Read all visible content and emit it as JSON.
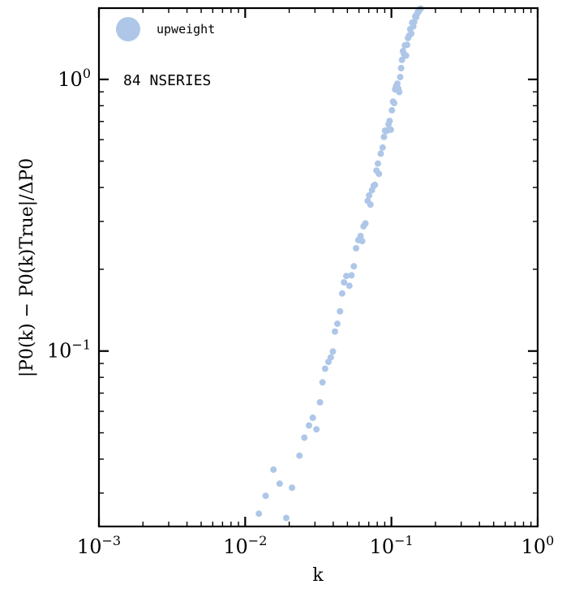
{
  "chart_data": {
    "type": "scatter",
    "xscale": "log",
    "yscale": "log",
    "xlim": [
      0.001,
      1
    ],
    "ylim": [
      0.0226,
      1.83
    ],
    "xlabel": "k",
    "ylabel": "|P0(k) − P0(k)True|/ΔP0",
    "grid": false,
    "legend_position": "top-left",
    "xticks": [
      {
        "value": 0.001,
        "base": "10",
        "exp": "−3"
      },
      {
        "value": 0.01,
        "base": "10",
        "exp": "−2"
      },
      {
        "value": 0.1,
        "base": "10",
        "exp": "−1"
      },
      {
        "value": 1,
        "base": "10",
        "exp": "0"
      }
    ],
    "yticks": [
      {
        "value": 0.1,
        "base": "10",
        "exp": "−1"
      },
      {
        "value": 1,
        "base": "10",
        "exp": "0"
      }
    ],
    "annotation": "84 NSERIES",
    "series": [
      {
        "name": "upweight",
        "color": "#aec7e8",
        "points": [
          [
            0.0124,
            0.0252
          ],
          [
            0.0138,
            0.0293
          ],
          [
            0.0156,
            0.0366
          ],
          [
            0.0172,
            0.0325
          ],
          [
            0.0191,
            0.0243
          ],
          [
            0.0209,
            0.0314
          ],
          [
            0.0235,
            0.0412
          ],
          [
            0.0254,
            0.048
          ],
          [
            0.0273,
            0.0532
          ],
          [
            0.029,
            0.0568
          ],
          [
            0.0307,
            0.0515
          ],
          [
            0.0325,
            0.0647
          ],
          [
            0.0338,
            0.0767
          ],
          [
            0.0352,
            0.0861
          ],
          [
            0.0371,
            0.0912
          ],
          [
            0.0385,
            0.0947
          ],
          [
            0.0398,
            0.0996
          ],
          [
            0.0411,
            0.118
          ],
          [
            0.0427,
            0.126
          ],
          [
            0.0445,
            0.14
          ],
          [
            0.046,
            0.163
          ],
          [
            0.0474,
            0.179
          ],
          [
            0.0492,
            0.189
          ],
          [
            0.0516,
            0.174
          ],
          [
            0.0533,
            0.19
          ],
          [
            0.0553,
            0.205
          ],
          [
            0.0573,
            0.239
          ],
          [
            0.0594,
            0.256
          ],
          [
            0.0615,
            0.265
          ],
          [
            0.0631,
            0.254
          ],
          [
            0.0645,
            0.288
          ],
          [
            0.0664,
            0.295
          ],
          [
            0.0688,
            0.357
          ],
          [
            0.0704,
            0.374
          ],
          [
            0.0719,
            0.346
          ],
          [
            0.0736,
            0.391
          ],
          [
            0.0757,
            0.406
          ],
          [
            0.0771,
            0.409
          ],
          [
            0.079,
            0.462
          ],
          [
            0.0808,
            0.49
          ],
          [
            0.0822,
            0.449
          ],
          [
            0.0845,
            0.533
          ],
          [
            0.0871,
            0.561
          ],
          [
            0.089,
            0.614
          ],
          [
            0.0905,
            0.648
          ],
          [
            0.0919,
            0.645
          ],
          [
            0.0935,
            0.648
          ],
          [
            0.0955,
            0.683
          ],
          [
            0.0972,
            0.703
          ],
          [
            0.099,
            0.653
          ],
          [
            0.1008,
            0.77
          ],
          [
            0.1025,
            0.828
          ],
          [
            0.1045,
            0.818
          ],
          [
            0.1059,
            0.919
          ],
          [
            0.1076,
            0.944
          ],
          [
            0.1098,
            0.965
          ],
          [
            0.1113,
            0.926
          ],
          [
            0.1131,
            0.899
          ],
          [
            0.1148,
            1.02
          ],
          [
            0.1164,
            1.1
          ],
          [
            0.1181,
            1.18
          ],
          [
            0.1199,
            1.27
          ],
          [
            0.1218,
            1.241
          ],
          [
            0.1236,
            1.335
          ],
          [
            0.126,
            1.224
          ],
          [
            0.128,
            1.34
          ],
          [
            0.1298,
            1.42
          ],
          [
            0.1322,
            1.449
          ],
          [
            0.1344,
            1.531
          ],
          [
            0.1366,
            1.475
          ],
          [
            0.1387,
            1.618
          ],
          [
            0.141,
            1.568
          ],
          [
            0.1432,
            1.629
          ],
          [
            0.1454,
            1.706
          ],
          [
            0.1475,
            1.694
          ],
          [
            0.1494,
            1.738
          ],
          [
            0.1519,
            1.776
          ],
          [
            0.1538,
            1.78
          ],
          [
            0.156,
            1.813
          ],
          [
            0.1584,
            1.82
          ]
        ]
      }
    ]
  }
}
